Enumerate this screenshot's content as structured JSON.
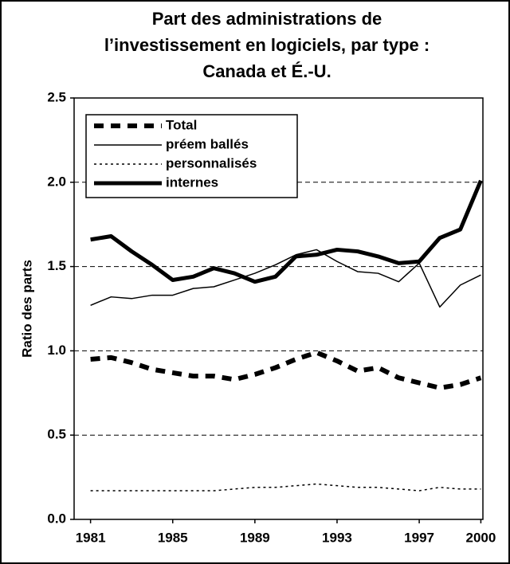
{
  "chart_data": {
    "type": "line",
    "title": [
      "Part des administrations de",
      "l’investissement en logiciels, par type :",
      "Canada et É.-U."
    ],
    "y_label": "Ratio des parts",
    "x": [
      1981,
      1982,
      1983,
      1984,
      1985,
      1986,
      1987,
      1988,
      1989,
      1990,
      1991,
      1992,
      1993,
      1994,
      1995,
      1996,
      1997,
      1998,
      1999,
      2000
    ],
    "xlim": [
      1980.2,
      2000.1
    ],
    "xticks": [
      1981,
      1985,
      1989,
      1993,
      1997,
      2000
    ],
    "ylim": [
      0,
      2.5
    ],
    "yticks": [
      {
        "value": 0,
        "label": "0.0"
      },
      0.5,
      {
        "value": 1,
        "label": "1.0"
      },
      1.5,
      {
        "value": 2,
        "label": "2.0"
      },
      2.5
    ],
    "grid": true,
    "legend": "top-left",
    "series": [
      {
        "name": "Total",
        "color": "#000000",
        "dash": "12,9",
        "width": 6,
        "values": [
          0.95,
          0.96,
          0.93,
          0.89,
          0.87,
          0.85,
          0.85,
          0.83,
          0.86,
          0.9,
          0.95,
          0.99,
          0.94,
          0.88,
          0.9,
          0.84,
          0.81,
          0.78,
          0.8,
          0.84
        ]
      },
      {
        "name": "préem ballés",
        "color": "#000000",
        "dash": "none",
        "width": 1.5,
        "values": [
          1.27,
          1.32,
          1.31,
          1.33,
          1.33,
          1.37,
          1.38,
          1.42,
          1.46,
          1.51,
          1.57,
          1.6,
          1.53,
          1.47,
          1.46,
          1.41,
          1.52,
          1.26,
          1.39,
          1.45
        ]
      },
      {
        "name": "personnalisés",
        "color": "#000000",
        "dash": "3,4",
        "width": 1.5,
        "values": [
          0.17,
          0.17,
          0.17,
          0.17,
          0.17,
          0.17,
          0.17,
          0.18,
          0.19,
          0.19,
          0.2,
          0.21,
          0.2,
          0.19,
          0.19,
          0.18,
          0.17,
          0.19,
          0.18,
          0.18
        ]
      },
      {
        "name": "internes",
        "color": "#000000",
        "dash": "none",
        "width": 5,
        "values": [
          1.66,
          1.68,
          1.59,
          1.51,
          1.42,
          1.44,
          1.49,
          1.46,
          1.41,
          1.44,
          1.56,
          1.57,
          1.6,
          1.59,
          1.56,
          1.52,
          1.53,
          1.67,
          1.72,
          2.01
        ]
      }
    ]
  }
}
